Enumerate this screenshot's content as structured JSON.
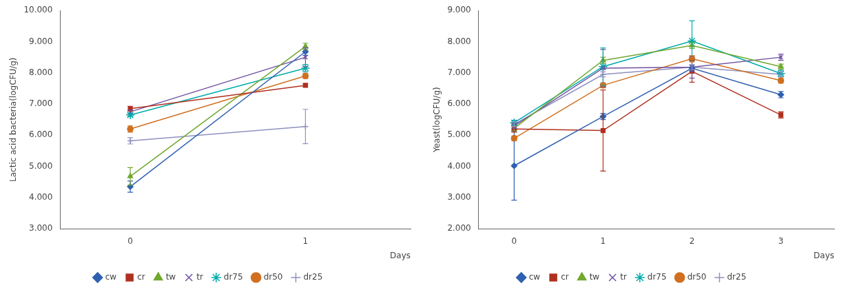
{
  "chart_data": [
    {
      "type": "line",
      "ylabel": "Lactic acid bacteria(logCFU/g)",
      "xlabel": "Days",
      "x": [
        0,
        1
      ],
      "xlim": [
        -0.4,
        1.6
      ],
      "xticks": [
        0,
        1
      ],
      "ylim": [
        3.0,
        10.0
      ],
      "yticks": [
        {
          "value": 3.0,
          "label": "3.000"
        },
        {
          "value": 4.0,
          "label": "4.000"
        },
        {
          "value": 5.0,
          "label": "5.000"
        },
        {
          "value": 6.0,
          "label": "6.000"
        },
        {
          "value": 7.0,
          "label": "7.000"
        },
        {
          "value": 8.0,
          "label": "8.000"
        },
        {
          "value": 9.0,
          "label": "9.000"
        },
        {
          "value": 10.0,
          "label": "10.000"
        }
      ],
      "grid": false,
      "legend": "bottom",
      "series": [
        {
          "name": "cw",
          "color": "#3060B0",
          "marker": "diamond",
          "values": [
            4.35,
            8.68
          ],
          "yerr": [
            0.18,
            0.12
          ]
        },
        {
          "name": "cr",
          "color": "#B03020",
          "marker": "square",
          "values": [
            6.85,
            7.6
          ],
          "yerr": [
            0.08,
            0.05
          ]
        },
        {
          "name": "tw",
          "color": "#70A830",
          "marker": "triangle",
          "values": [
            4.68,
            8.85
          ],
          "yerr": [
            0.28,
            0.1
          ]
        },
        {
          "name": "tr",
          "color": "#7050A0",
          "marker": "x",
          "values": [
            6.75,
            8.5
          ],
          "yerr": [
            0.06,
            0.3
          ]
        },
        {
          "name": "dr75",
          "color": "#00AAAA",
          "marker": "star",
          "values": [
            6.65,
            8.15
          ],
          "yerr": [
            0.05,
            0.12
          ]
        },
        {
          "name": "dr50",
          "color": "#D07020",
          "marker": "circle",
          "values": [
            6.2,
            7.9
          ],
          "yerr": [
            0.1,
            0.08
          ]
        },
        {
          "name": "dr25",
          "color": "#9090C0",
          "marker": "plus",
          "values": [
            5.82,
            6.28
          ],
          "yerr": [
            0.1,
            0.55
          ]
        }
      ]
    },
    {
      "type": "line",
      "ylabel": "Yeast(logCFU/g)",
      "xlabel": "Days",
      "x": [
        0,
        1,
        2,
        3
      ],
      "xlim": [
        -0.4,
        3.6
      ],
      "xticks": [
        0,
        1,
        2,
        3
      ],
      "ylim": [
        2.0,
        9.0
      ],
      "yticks": [
        {
          "value": 2.0,
          "label": "2.000"
        },
        {
          "value": 3.0,
          "label": "3.000"
        },
        {
          "value": 4.0,
          "label": "4.000"
        },
        {
          "value": 5.0,
          "label": "5.000"
        },
        {
          "value": 6.0,
          "label": "6.000"
        },
        {
          "value": 7.0,
          "label": "7.000"
        },
        {
          "value": 8.0,
          "label": "8.000"
        },
        {
          "value": 9.0,
          "label": "9.000"
        }
      ],
      "grid": false,
      "legend": "bottom",
      "series": [
        {
          "name": "cw",
          "color": "#3060B0",
          "marker": "diamond",
          "values": [
            4.02,
            5.6,
            7.15,
            6.3
          ],
          "yerr": [
            1.1,
            0.1,
            0.1,
            0.1
          ]
        },
        {
          "name": "cr",
          "color": "#B03020",
          "marker": "square",
          "values": [
            5.2,
            5.15,
            7.05,
            5.65
          ],
          "yerr": [
            0.1,
            1.3,
            0.35,
            0.1
          ]
        },
        {
          "name": "tw",
          "color": "#70A830",
          "marker": "triangle",
          "values": [
            5.22,
            7.4,
            7.88,
            7.2
          ],
          "yerr": [
            0.08,
            0.1,
            0.1,
            0.08
          ]
        },
        {
          "name": "tr",
          "color": "#7050A0",
          "marker": "x",
          "values": [
            5.3,
            7.15,
            7.18,
            7.5
          ],
          "yerr": [
            0.08,
            0.6,
            0.35,
            0.1
          ]
        },
        {
          "name": "dr75",
          "color": "#00AAAA",
          "marker": "star",
          "values": [
            5.4,
            7.2,
            8.02,
            6.98
          ],
          "yerr": [
            0.08,
            0.6,
            0.65,
            0.1
          ]
        },
        {
          "name": "dr50",
          "color": "#D07020",
          "marker": "circle",
          "values": [
            4.9,
            6.6,
            7.45,
            6.75
          ],
          "yerr": [
            0.08,
            0.08,
            0.1,
            0.08
          ]
        },
        {
          "name": "dr25",
          "color": "#9090C0",
          "marker": "plus",
          "values": [
            5.35,
            6.95,
            7.18,
            6.95
          ],
          "yerr": [
            0.08,
            0.08,
            0.08,
            0.08
          ]
        }
      ]
    }
  ]
}
